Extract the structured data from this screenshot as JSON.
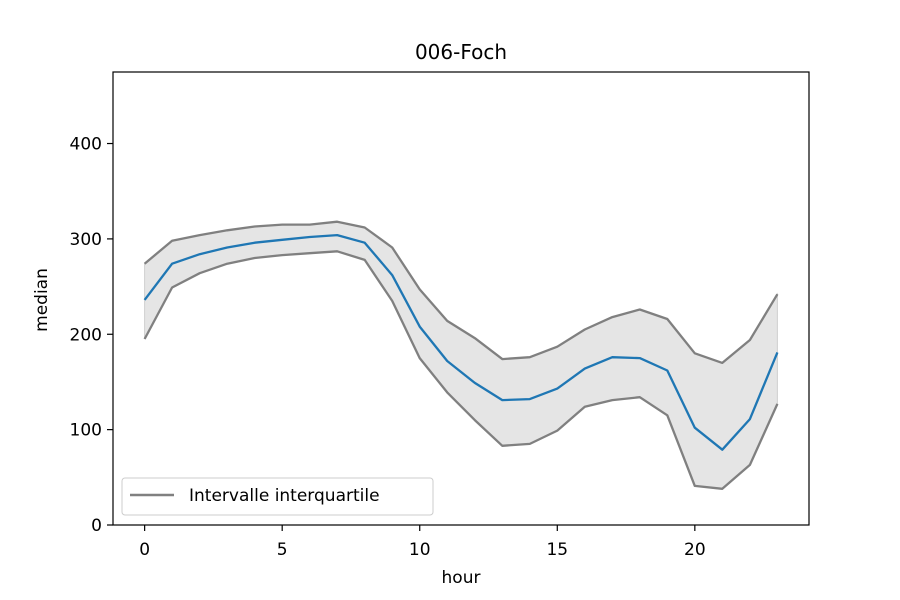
{
  "chart_data": {
    "type": "line",
    "title": "006-Foch",
    "xlabel": "hour",
    "ylabel": "median",
    "xlim": [
      -1.15,
      24.15
    ],
    "ylim": [
      0,
      475
    ],
    "xticks": [
      0,
      5,
      10,
      15,
      20
    ],
    "yticks": [
      0,
      100,
      200,
      300,
      400
    ],
    "grid": false,
    "legend_position": "lower-left",
    "x": [
      0,
      1,
      2,
      3,
      4,
      5,
      6,
      7,
      8,
      9,
      10,
      11,
      12,
      13,
      14,
      15,
      16,
      17,
      18,
      19,
      20,
      21,
      22,
      23
    ],
    "series": [
      {
        "role": "median",
        "color": "#1f77b4",
        "values": [
          236,
          274,
          284,
          291,
          296,
          299,
          302,
          304,
          296,
          262,
          208,
          172,
          149,
          131,
          132,
          143,
          164,
          176,
          175,
          162,
          102,
          79,
          111,
          181
        ]
      },
      {
        "role": "upper_quartile",
        "name": "Intervalle interquartile",
        "color": "#808080",
        "values": [
          274,
          298,
          304,
          309,
          313,
          315,
          315,
          318,
          312,
          291,
          247,
          214,
          196,
          174,
          176,
          187,
          205,
          218,
          226,
          216,
          180,
          170,
          194,
          242
        ]
      },
      {
        "role": "lower_quartile",
        "color": "#808080",
        "values": [
          195,
          249,
          264,
          274,
          280,
          283,
          285,
          287,
          278,
          235,
          175,
          139,
          110,
          83,
          85,
          99,
          124,
          131,
          134,
          115,
          41,
          38,
          63,
          127
        ]
      }
    ],
    "band_fill": "#e5e5e5",
    "legend": [
      {
        "label": "Intervalle interquartile",
        "color": "#808080"
      }
    ]
  }
}
